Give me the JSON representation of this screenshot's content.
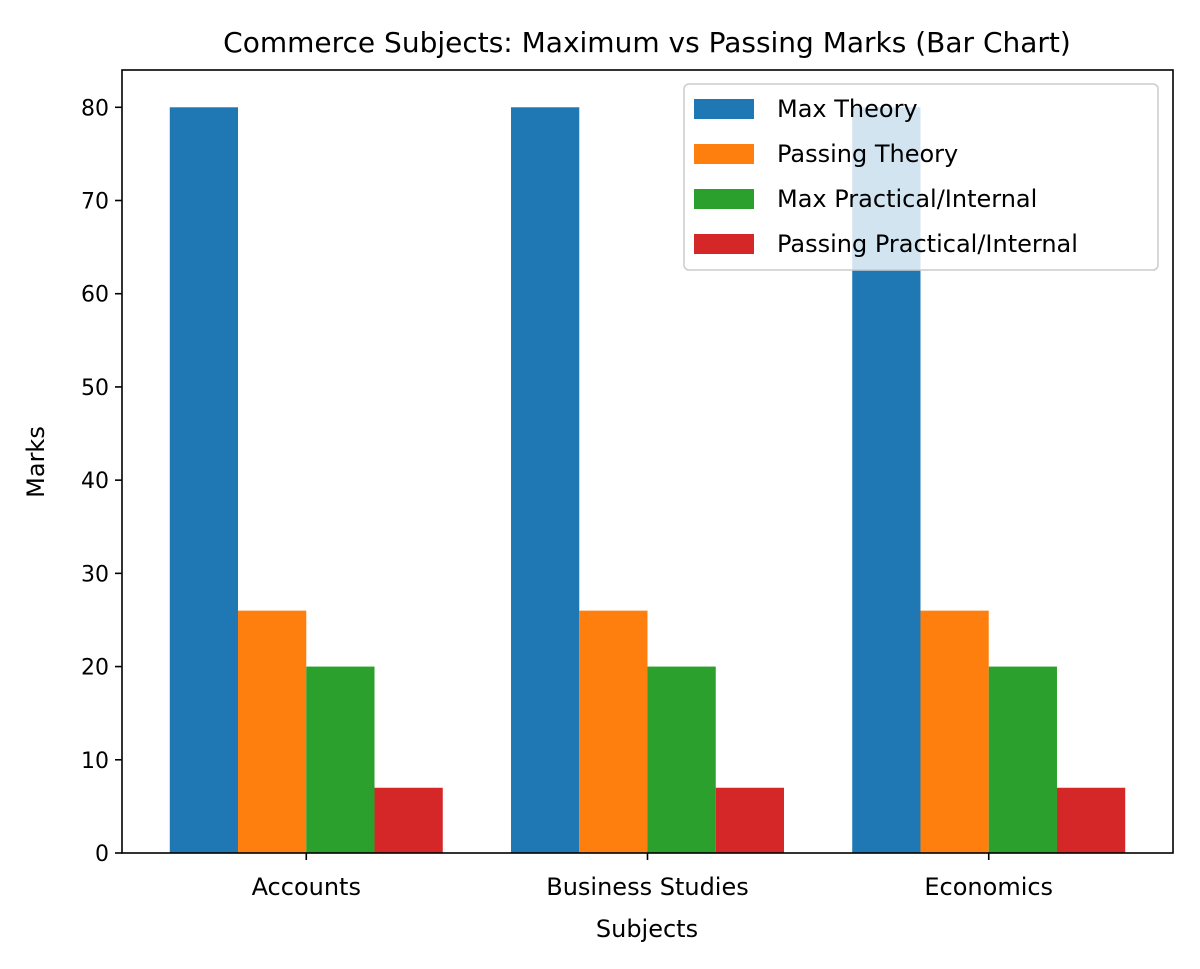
{
  "chart_data": {
    "type": "bar",
    "title": "Commerce Subjects: Maximum vs Passing Marks (Bar Chart)",
    "xlabel": "Subjects",
    "ylabel": "Marks",
    "categories": [
      "Accounts",
      "Business Studies",
      "Economics"
    ],
    "series": [
      {
        "name": "Max Theory",
        "values": [
          80,
          80,
          80
        ],
        "color": "#1f77b4"
      },
      {
        "name": "Passing Theory",
        "values": [
          26,
          26,
          26
        ],
        "color": "#ff7f0e"
      },
      {
        "name": "Max Practical/Internal",
        "values": [
          20,
          20,
          20
        ],
        "color": "#2ca02c"
      },
      {
        "name": "Passing Practical/Internal",
        "values": [
          7,
          7,
          7
        ],
        "color": "#d62728"
      }
    ],
    "ylim": [
      0,
      84
    ],
    "yticks": [
      0,
      10,
      20,
      30,
      40,
      50,
      60,
      70,
      80
    ],
    "grid": false,
    "legend_position": "top-right"
  }
}
